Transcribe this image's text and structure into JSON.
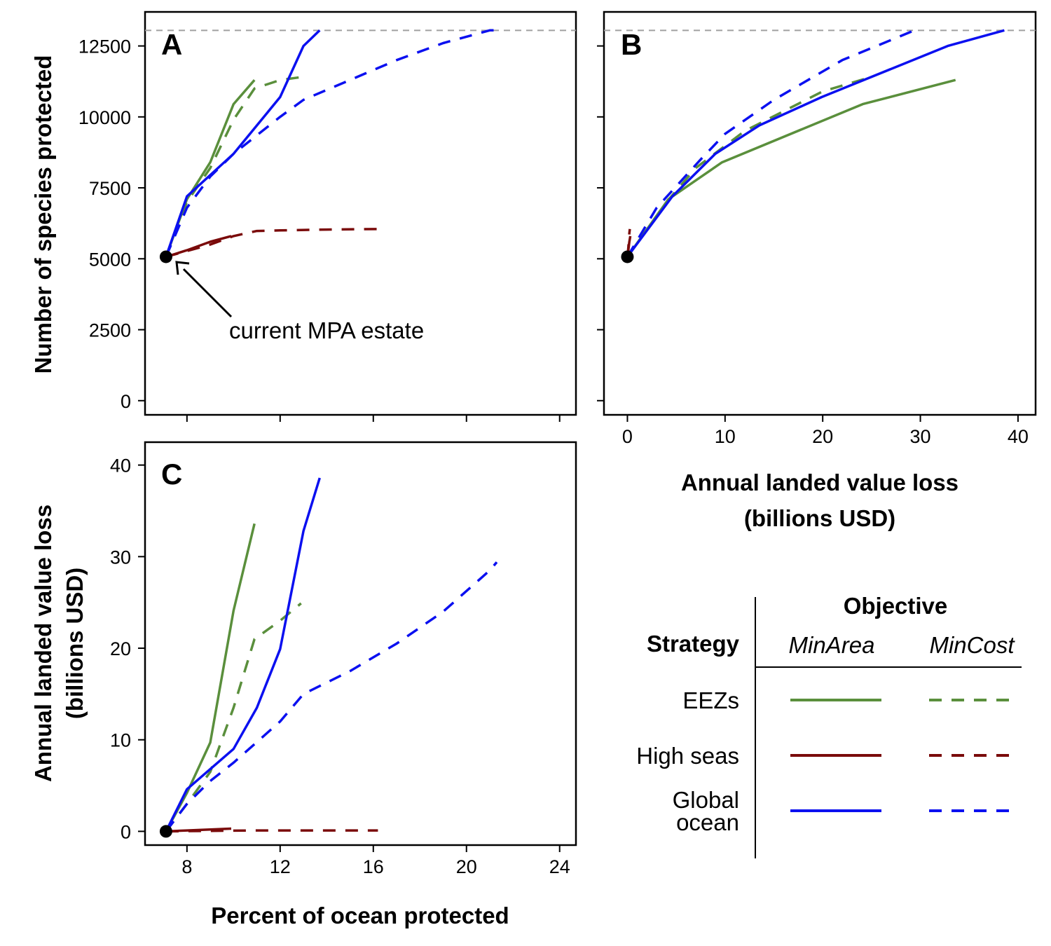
{
  "colors": {
    "eez": "#5a8f3c",
    "high_seas": "#7a0a0a",
    "global": "#0b10f0",
    "ceiling": "#a0a0a0",
    "point": "#000000"
  },
  "axis_titles": {
    "species": "Number of species protected",
    "value_loss_line1": "Annual landed value loss",
    "value_loss_line2": "(billions USD)",
    "percent": "Percent of ocean protected"
  },
  "annotation": {
    "text": "current MPA estate"
  },
  "legend": {
    "title": "Objective",
    "strategy_label": "Strategy",
    "col_minarea": "MinArea",
    "col_mincost": "MinCost",
    "rows": [
      {
        "lines": [
          "EEZs"
        ],
        "color_key": "eez"
      },
      {
        "lines": [
          "High seas"
        ],
        "color_key": "high_seas"
      },
      {
        "lines": [
          "Global",
          "ocean"
        ],
        "color_key": "global"
      }
    ]
  },
  "chart_data": [
    {
      "panel": "A",
      "type": "line",
      "xlabel": "",
      "ylabel": "Number of species protected",
      "xlim": [
        6.2,
        24.7
      ],
      "ylim": [
        -500,
        13700
      ],
      "xticks": [
        8,
        12,
        16,
        20,
        24
      ],
      "xtick_labels": false,
      "yticks": [
        0,
        2500,
        5000,
        7500,
        10000,
        12500
      ],
      "reference_line": 13050,
      "current_point": {
        "x": 7.1,
        "y": 5070
      },
      "series": [
        {
          "strategy": "EEZs",
          "objective": "MinArea",
          "color_key": "eez",
          "dashed": false,
          "x": [
            7.1,
            8.0,
            9.0,
            10.0,
            10.9
          ],
          "y": [
            5070,
            7100,
            8400,
            10450,
            11300
          ]
        },
        {
          "strategy": "EEZs",
          "objective": "MinCost",
          "color_key": "eez",
          "dashed": true,
          "x": [
            7.1,
            8.0,
            9.0,
            10.0,
            10.9,
            12.0,
            12.9
          ],
          "y": [
            5070,
            7000,
            8200,
            9900,
            11000,
            11300,
            11400
          ]
        },
        {
          "strategy": "High seas",
          "objective": "MinArea",
          "color_key": "high_seas",
          "dashed": false,
          "x": [
            7.1,
            8.0,
            9.0,
            9.9
          ],
          "y": [
            5070,
            5300,
            5600,
            5800
          ]
        },
        {
          "strategy": "High seas",
          "objective": "MinCost",
          "color_key": "high_seas",
          "dashed": true,
          "x": [
            7.1,
            9.0,
            10.0,
            11.0,
            12.0,
            14.0,
            16.2
          ],
          "y": [
            5070,
            5500,
            5800,
            5980,
            6000,
            6030,
            6050
          ]
        },
        {
          "strategy": "Global ocean",
          "objective": "MinArea",
          "color_key": "global",
          "dashed": false,
          "x": [
            7.1,
            8.0,
            10.0,
            11.0,
            12.0,
            13.0,
            13.7
          ],
          "y": [
            5070,
            7200,
            8700,
            9700,
            10700,
            12500,
            13050
          ]
        },
        {
          "strategy": "Global ocean",
          "objective": "MinCost",
          "color_key": "global",
          "dashed": true,
          "x": [
            7.1,
            8.0,
            9.0,
            10.0,
            12.0,
            13.0,
            15.0,
            17.0,
            19.0,
            21.0,
            21.5
          ],
          "y": [
            5070,
            6800,
            7900,
            8700,
            10000,
            10600,
            11300,
            12000,
            12600,
            13050,
            13050
          ]
        }
      ]
    },
    {
      "panel": "B",
      "type": "line",
      "xlabel_line1": "Annual landed value loss",
      "xlabel_line2": "(billions USD)",
      "ylabel": "",
      "xlim": [
        -2.4,
        41.8
      ],
      "ylim": [
        -500,
        13700
      ],
      "xticks": [
        0,
        10,
        20,
        30,
        40
      ],
      "yticks": [
        0,
        2500,
        5000,
        7500,
        10000,
        12500
      ],
      "ytick_labels": false,
      "reference_line": 13050,
      "current_point": {
        "x": 0,
        "y": 5070
      },
      "series": [
        {
          "strategy": "EEZs",
          "objective": "MinArea",
          "color_key": "eez",
          "dashed": false,
          "x": [
            0,
            4.2,
            9.7,
            24.1,
            33.6
          ],
          "y": [
            5070,
            7100,
            8400,
            10450,
            11300
          ]
        },
        {
          "strategy": "EEZs",
          "objective": "MinCost",
          "color_key": "eez",
          "dashed": true,
          "x": [
            0,
            4.0,
            7.0,
            12.0,
            20.0,
            24.9
          ],
          "y": [
            5070,
            7000,
            8200,
            9500,
            10900,
            11400
          ]
        },
        {
          "strategy": "High seas",
          "objective": "MinArea",
          "color_key": "high_seas",
          "dashed": false,
          "x": [
            0,
            0.1,
            0.2,
            0.3
          ],
          "y": [
            5070,
            5300,
            5600,
            5800
          ]
        },
        {
          "strategy": "High seas",
          "objective": "MinCost",
          "color_key": "high_seas",
          "dashed": true,
          "x": [
            0,
            0.1,
            0.15,
            0.2,
            0.25
          ],
          "y": [
            5070,
            5400,
            5700,
            5900,
            6050
          ]
        },
        {
          "strategy": "Global ocean",
          "objective": "MinArea",
          "color_key": "global",
          "dashed": false,
          "x": [
            0,
            4.6,
            9.0,
            13.5,
            19.9,
            32.8,
            38.6
          ],
          "y": [
            5070,
            7200,
            8700,
            9700,
            10700,
            12500,
            13050
          ]
        },
        {
          "strategy": "Global ocean",
          "objective": "MinCost",
          "color_key": "global",
          "dashed": true,
          "x": [
            0,
            3.0,
            7.5,
            10.0,
            15.0,
            22.0,
            29.4
          ],
          "y": [
            5070,
            6800,
            8500,
            9400,
            10600,
            12000,
            13050
          ]
        }
      ]
    },
    {
      "panel": "C",
      "type": "line",
      "xlabel": "Percent of ocean protected",
      "ylabel_line1": "Annual landed value loss",
      "ylabel_line2": "(billions USD)",
      "xlim": [
        6.2,
        24.7
      ],
      "ylim": [
        -1.5,
        42.5
      ],
      "xticks": [
        8,
        12,
        16,
        20,
        24
      ],
      "yticks": [
        0,
        10,
        20,
        30,
        40
      ],
      "current_point": {
        "x": 7.1,
        "y": 0
      },
      "series": [
        {
          "strategy": "EEZs",
          "objective": "MinArea",
          "color_key": "eez",
          "dashed": false,
          "x": [
            7.1,
            8.0,
            9.0,
            10.0,
            10.9
          ],
          "y": [
            0,
            4.2,
            9.7,
            24.1,
            33.6
          ]
        },
        {
          "strategy": "EEZs",
          "objective": "MinCost",
          "color_key": "eez",
          "dashed": true,
          "x": [
            7.1,
            8.0,
            9.0,
            10.0,
            10.9,
            12.0,
            12.9
          ],
          "y": [
            0,
            3.0,
            6.5,
            13.5,
            21.0,
            23.0,
            24.9
          ]
        },
        {
          "strategy": "High seas",
          "objective": "MinArea",
          "color_key": "high_seas",
          "dashed": false,
          "x": [
            7.1,
            8.0,
            9.0,
            9.9
          ],
          "y": [
            0,
            0.1,
            0.2,
            0.3
          ]
        },
        {
          "strategy": "High seas",
          "objective": "MinCost",
          "color_key": "high_seas",
          "dashed": true,
          "x": [
            7.1,
            9.0,
            11.0,
            14.0,
            16.2
          ],
          "y": [
            0,
            0.05,
            0.1,
            0.1,
            0.1
          ]
        },
        {
          "strategy": "Global ocean",
          "objective": "MinArea",
          "color_key": "global",
          "dashed": false,
          "x": [
            7.1,
            8.0,
            10.0,
            11.0,
            12.0,
            13.0,
            13.7
          ],
          "y": [
            0,
            4.6,
            9.0,
            13.5,
            19.9,
            32.8,
            38.6
          ]
        },
        {
          "strategy": "Global ocean",
          "objective": "MinCost",
          "color_key": "global",
          "dashed": true,
          "x": [
            7.1,
            8.0,
            9.0,
            10.0,
            12.0,
            13.0,
            15.0,
            17.0,
            19.0,
            21.0,
            21.3
          ],
          "y": [
            0,
            3.0,
            5.5,
            7.5,
            12.0,
            15.0,
            17.5,
            20.5,
            24.0,
            28.5,
            29.4
          ]
        }
      ]
    }
  ]
}
